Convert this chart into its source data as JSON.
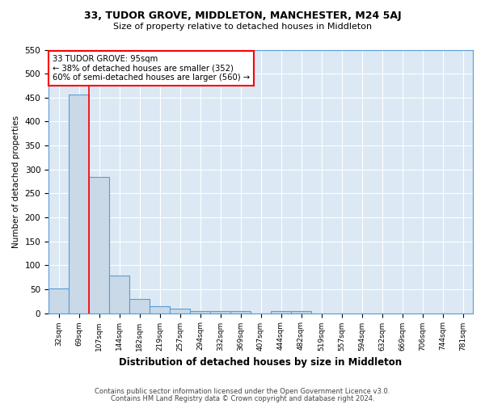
{
  "title1": "33, TUDOR GROVE, MIDDLETON, MANCHESTER, M24 5AJ",
  "title2": "Size of property relative to detached houses in Middleton",
  "xlabel": "Distribution of detached houses by size in Middleton",
  "ylabel": "Number of detached properties",
  "categories": [
    "32sqm",
    "69sqm",
    "107sqm",
    "144sqm",
    "182sqm",
    "219sqm",
    "257sqm",
    "294sqm",
    "332sqm",
    "369sqm",
    "407sqm",
    "444sqm",
    "482sqm",
    "519sqm",
    "557sqm",
    "594sqm",
    "632sqm",
    "669sqm",
    "706sqm",
    "744sqm",
    "781sqm"
  ],
  "values": [
    52,
    456,
    285,
    78,
    30,
    15,
    10,
    5,
    5,
    5,
    0,
    5,
    5,
    0,
    0,
    0,
    0,
    0,
    0,
    0,
    0
  ],
  "bar_color": "#c9d9e8",
  "bar_edge_color": "#5b9bd5",
  "red_line_index": 2,
  "annotation_line1": "33 TUDOR GROVE: 95sqm",
  "annotation_line2": "← 38% of detached houses are smaller (352)",
  "annotation_line3": "60% of semi-detached houses are larger (560) →",
  "annotation_box_color": "white",
  "annotation_box_edge_color": "red",
  "ylim": [
    0,
    550
  ],
  "yticks": [
    0,
    50,
    100,
    150,
    200,
    250,
    300,
    350,
    400,
    450,
    500,
    550
  ],
  "footer1": "Contains HM Land Registry data © Crown copyright and database right 2024.",
  "footer2": "Contains public sector information licensed under the Open Government Licence v3.0.",
  "plot_bg_color": "#dce9f5",
  "fig_bg_color": "#ffffff",
  "grid_color": "#ffffff",
  "spine_color": "#5b9bd5"
}
